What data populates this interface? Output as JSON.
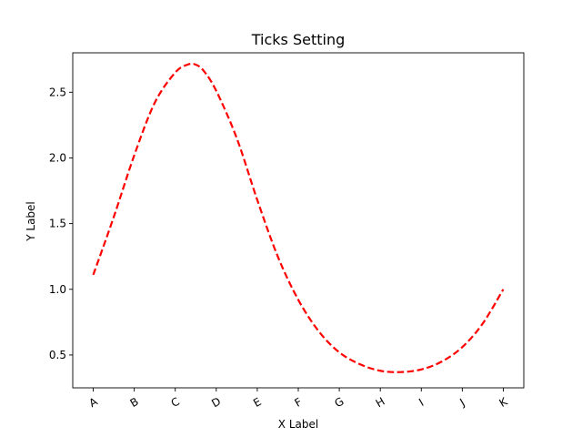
{
  "chart_data": {
    "type": "line",
    "title": "Ticks Setting",
    "xlabel": "X Label",
    "ylabel": "Y Label",
    "x_tick_labels": [
      "A",
      "B",
      "C",
      "D",
      "E",
      "F",
      "G",
      "H",
      "I",
      "J",
      "K"
    ],
    "x_tick_rotation_deg": -30,
    "xlim": [
      -0.5,
      10.5
    ],
    "ylim": [
      0.25,
      2.8
    ],
    "y_ticks": [
      0.5,
      1.0,
      1.5,
      2.0,
      2.5
    ],
    "y_tick_labels": [
      "0.5",
      "1.0",
      "1.5",
      "2.0",
      "2.5"
    ],
    "grid": false,
    "line_style": "dashed",
    "line_color": "#ff0000",
    "series": [
      {
        "x": [
          0,
          0.5,
          1,
          1.5,
          2,
          2.3,
          2.5,
          2.7,
          3,
          3.5,
          4,
          4.5,
          5,
          5.5,
          6,
          6.5,
          7,
          7.5,
          8,
          8.5,
          9,
          9.5,
          10
        ],
        "y": [
          1.11,
          1.55,
          2.02,
          2.42,
          2.65,
          2.71,
          2.71,
          2.66,
          2.51,
          2.15,
          1.68,
          1.25,
          0.92,
          0.68,
          0.52,
          0.43,
          0.38,
          0.37,
          0.39,
          0.45,
          0.56,
          0.74,
          1.0
        ]
      }
    ]
  }
}
